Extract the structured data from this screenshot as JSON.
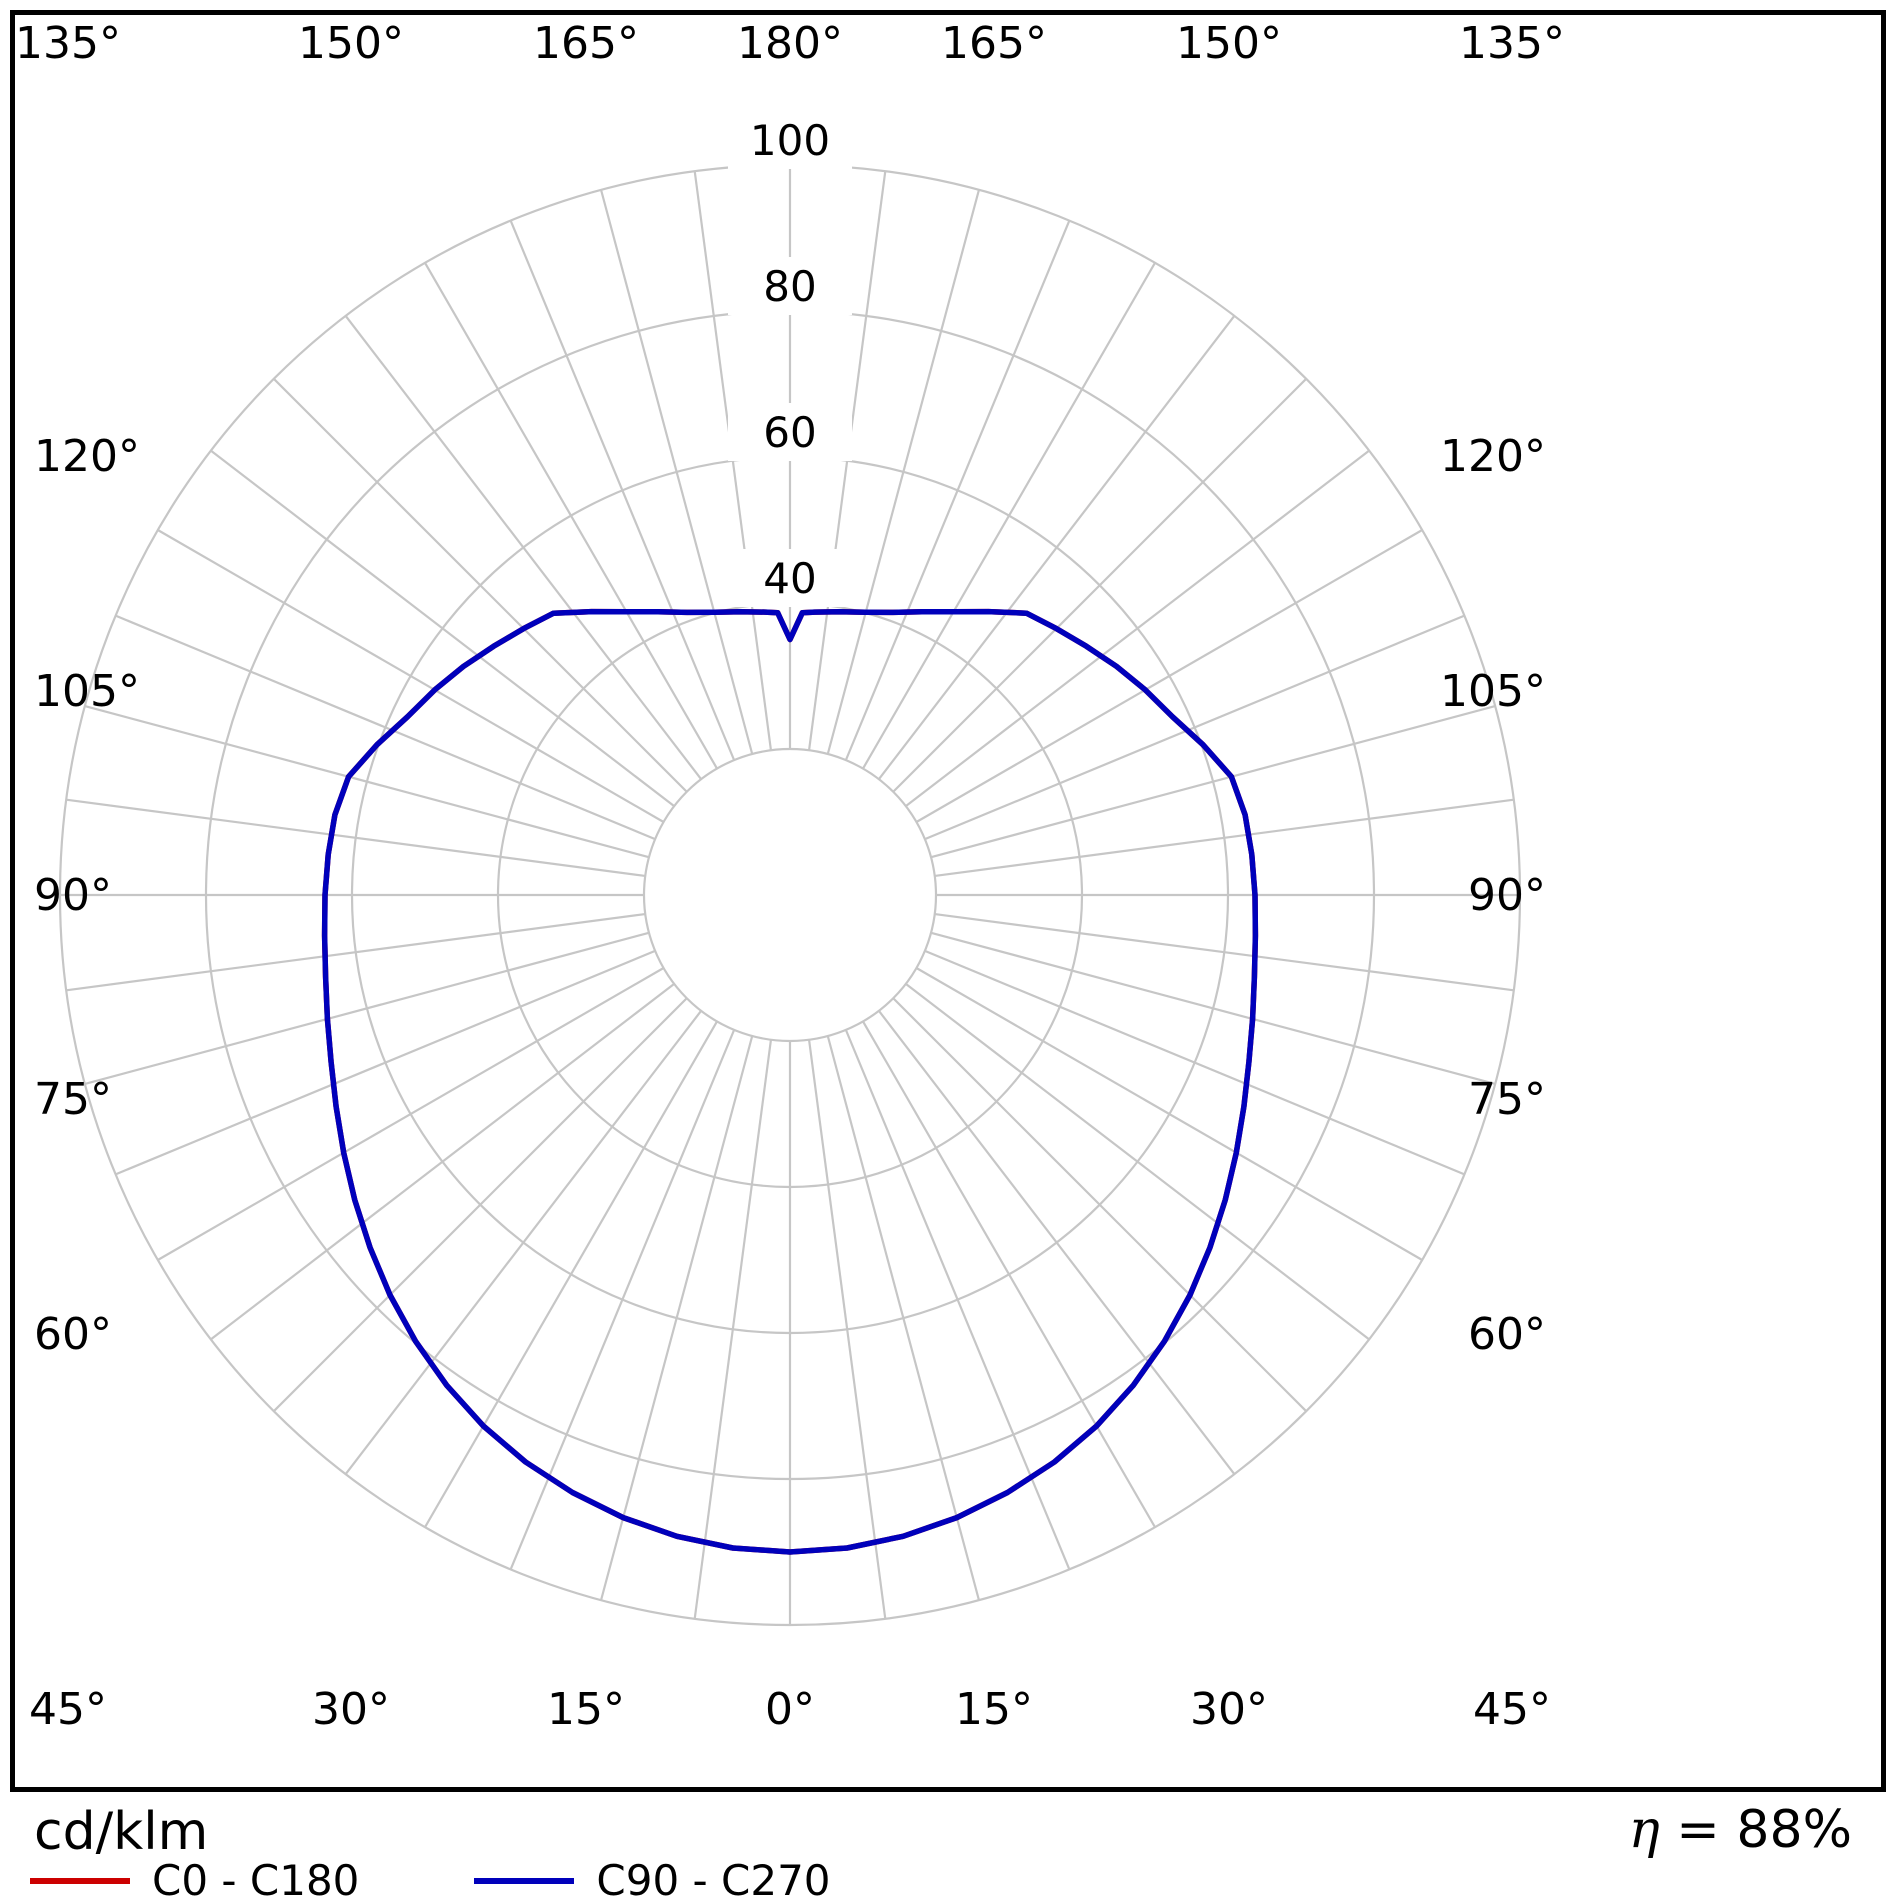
{
  "footer": {
    "unit_label": "cd/klm",
    "efficiency_symbol": "η",
    "efficiency_rest": " = 88%"
  },
  "legend": {
    "items": [
      {
        "label": "C0 - C180",
        "color": "#cc0000"
      },
      {
        "label": "C90 - C270",
        "color": "#0000bb"
      }
    ]
  },
  "chart_data": {
    "type": "polar-photometric",
    "unit": "cd/klm",
    "efficiency_percent": 88,
    "rmax": 100,
    "ring_step": 20,
    "radial_rings": [
      20,
      40,
      60,
      80,
      100
    ],
    "radial_tick_labels": [
      "40",
      "60",
      "80",
      "100"
    ],
    "spoke_step_deg": 7.5,
    "angle_label_step_deg": 15,
    "angle_labels": [
      "0°",
      "15°",
      "30°",
      "45°",
      "60°",
      "75°",
      "90°",
      "105°",
      "120°",
      "135°",
      "150°",
      "165°",
      "180°"
    ],
    "grid_color": "#c6c6c6",
    "series": [
      {
        "name": "C0 - C180",
        "color": "#cc0000",
        "gamma": [
          0,
          5,
          10,
          15,
          20,
          25,
          30,
          35,
          40,
          45,
          50,
          55,
          60,
          65,
          70,
          75,
          80,
          85,
          90,
          95,
          100,
          105,
          110,
          115,
          120,
          125,
          130,
          135,
          140,
          145,
          150,
          155,
          160,
          165,
          170,
          175,
          177.5,
          180
        ],
        "values": [
          90.0,
          89.8,
          89.2,
          88.3,
          87.1,
          85.7,
          84.0,
          82.0,
          79.8,
          77.5,
          75.1,
          72.8,
          70.6,
          68.6,
          66.9,
          65.6,
          64.6,
          64.0,
          63.7,
          63.5,
          63.3,
          62.6,
          60.2,
          57.8,
          56.2,
          54.6,
          53.0,
          51.6,
          50.4,
          47.4,
          44.8,
          42.8,
          41.2,
          40.1,
          39.4,
          38.9,
          38.7,
          35.0
        ]
      },
      {
        "name": "C90 - C270",
        "color": "#0000bb",
        "gamma": [
          0,
          5,
          10,
          15,
          20,
          25,
          30,
          35,
          40,
          45,
          50,
          55,
          60,
          65,
          70,
          75,
          80,
          85,
          90,
          95,
          100,
          105,
          110,
          115,
          120,
          125,
          130,
          135,
          140,
          145,
          150,
          155,
          160,
          165,
          170,
          175,
          177.5,
          180
        ],
        "values": [
          90.0,
          89.8,
          89.2,
          88.3,
          87.1,
          85.7,
          84.0,
          82.0,
          79.8,
          77.5,
          75.1,
          72.8,
          70.6,
          68.6,
          66.9,
          65.6,
          64.6,
          64.0,
          63.7,
          63.5,
          63.3,
          62.6,
          60.2,
          57.8,
          56.2,
          54.6,
          53.0,
          51.6,
          50.4,
          47.4,
          44.8,
          42.8,
          41.2,
          40.1,
          39.4,
          38.9,
          38.7,
          35.0
        ]
      }
    ]
  }
}
